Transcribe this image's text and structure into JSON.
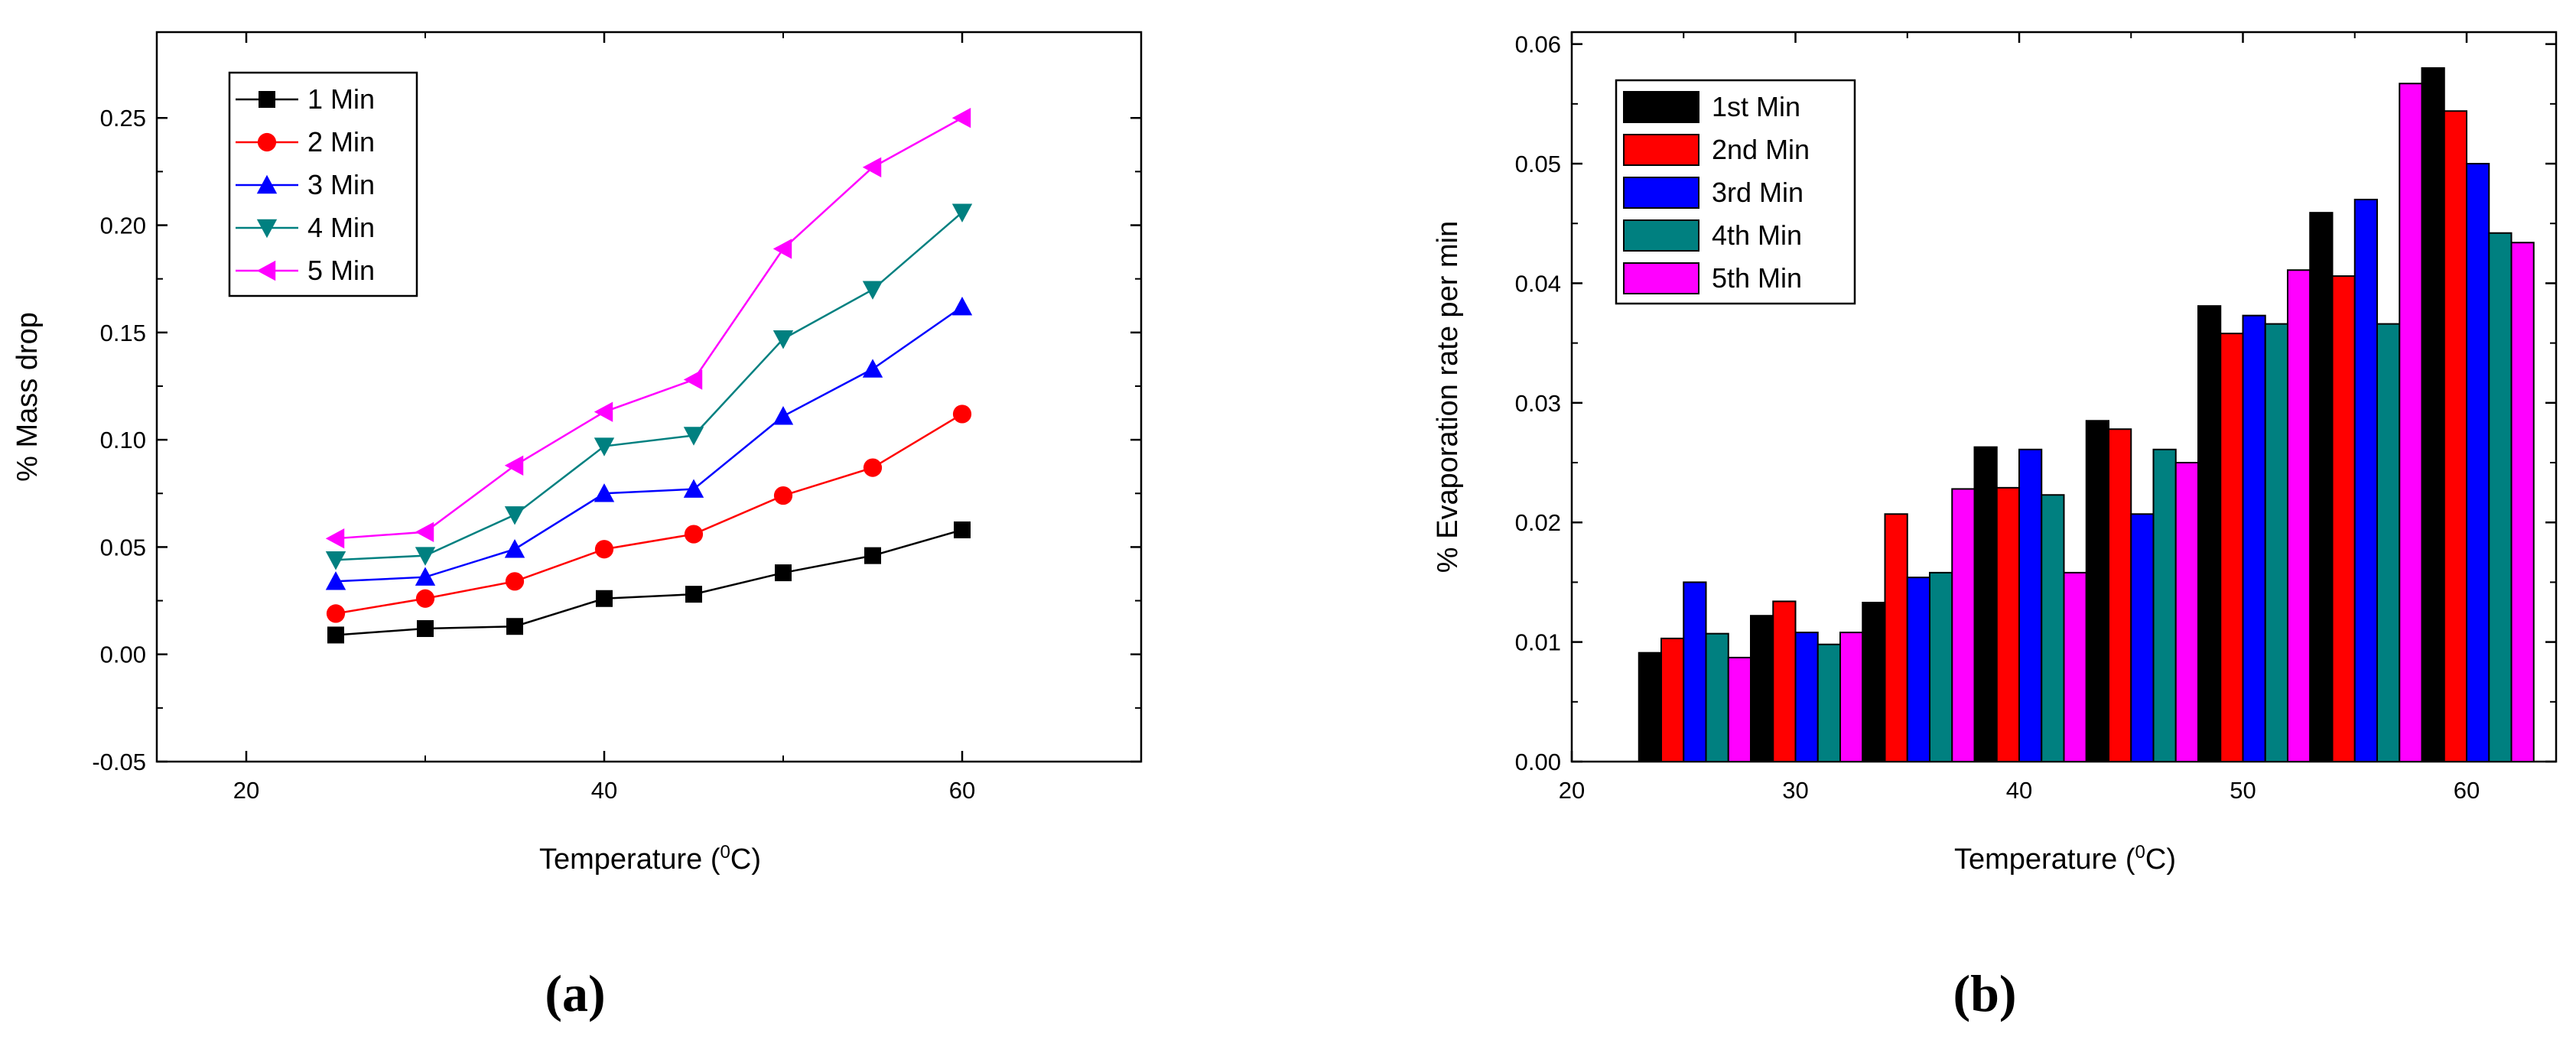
{
  "chart_data": [
    {
      "type": "line",
      "panel_label": "(a)",
      "xlabel": "Temperature (",
      "xlabel_sup": "0",
      "xlabel_unit": "C)",
      "ylabel": "% Mass drop",
      "xlim": [
        15,
        70
      ],
      "ylim": [
        -0.05,
        0.29
      ],
      "xticks": [
        20,
        40,
        60
      ],
      "yticks": [
        -0.05,
        0.0,
        0.05,
        0.1,
        0.15,
        0.2,
        0.25
      ],
      "ytick_labels": [
        "-0.05",
        "0.00",
        "0.05",
        "0.10",
        "0.15",
        "0.20",
        "0.25"
      ],
      "legend_position": "top-left",
      "x": [
        25,
        30,
        35,
        40,
        45,
        50,
        55,
        60
      ],
      "series": [
        {
          "name": "1 Min",
          "color": "#000000",
          "marker": "square",
          "values": [
            0.009,
            0.012,
            0.013,
            0.026,
            0.028,
            0.038,
            0.046,
            0.058
          ]
        },
        {
          "name": "2 Min",
          "color": "#ff0000",
          "marker": "circle",
          "values": [
            0.019,
            0.026,
            0.034,
            0.049,
            0.056,
            0.074,
            0.087,
            0.112
          ]
        },
        {
          "name": "3 Min",
          "color": "#0000ff",
          "marker": "triangle-up",
          "values": [
            0.034,
            0.036,
            0.049,
            0.075,
            0.077,
            0.111,
            0.133,
            0.162
          ]
        },
        {
          "name": "4 Min",
          "color": "#008080",
          "marker": "triangle-down",
          "values": [
            0.044,
            0.046,
            0.065,
            0.097,
            0.102,
            0.147,
            0.17,
            0.206
          ]
        },
        {
          "name": "5 Min",
          "color": "#ff00ff",
          "marker": "triangle-left",
          "values": [
            0.054,
            0.057,
            0.088,
            0.113,
            0.128,
            0.189,
            0.227,
            0.25
          ]
        }
      ]
    },
    {
      "type": "bar",
      "panel_label": "(b)",
      "xlabel": "Temperature (",
      "xlabel_sup": "0",
      "xlabel_unit": "C)",
      "ylabel": "% Evaporation rate per min",
      "xlim": [
        20,
        64
      ],
      "ylim": [
        0,
        0.061
      ],
      "xticks": [
        20,
        30,
        40,
        50,
        60
      ],
      "yticks": [
        0.0,
        0.01,
        0.02,
        0.03,
        0.04,
        0.05,
        0.06
      ],
      "ytick_labels": [
        "0.00",
        "0.01",
        "0.02",
        "0.03",
        "0.04",
        "0.05",
        "0.06"
      ],
      "legend_position": "top-left",
      "categories": [
        25,
        30,
        35,
        40,
        45,
        50,
        55,
        60
      ],
      "series": [
        {
          "name": "1st Min",
          "color": "#000000",
          "values": [
            0.0091,
            0.0122,
            0.0133,
            0.0263,
            0.0285,
            0.0381,
            0.0459,
            0.058
          ]
        },
        {
          "name": "2nd Min",
          "color": "#ff0000",
          "values": [
            0.0103,
            0.0134,
            0.0207,
            0.0229,
            0.0278,
            0.0358,
            0.0406,
            0.0544
          ]
        },
        {
          "name": "3rd Min",
          "color": "#0000ff",
          "values": [
            0.015,
            0.0108,
            0.0154,
            0.0261,
            0.0207,
            0.0373,
            0.047,
            0.05
          ]
        },
        {
          "name": "4th Min",
          "color": "#008080",
          "values": [
            0.0107,
            0.0098,
            0.0158,
            0.0223,
            0.0261,
            0.0366,
            0.0366,
            0.0442
          ]
        },
        {
          "name": "5th Min",
          "color": "#ff00ff",
          "values": [
            0.0087,
            0.0108,
            0.0228,
            0.0158,
            0.025,
            0.0411,
            0.0567,
            0.0434
          ]
        }
      ]
    }
  ]
}
